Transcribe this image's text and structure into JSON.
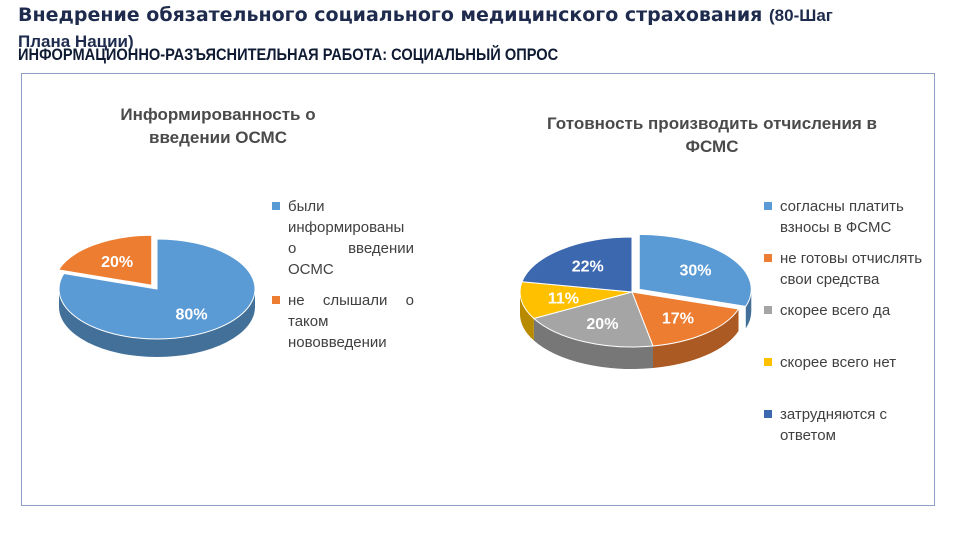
{
  "header": {
    "title": "Внедрение обязательного социального медицинского страхования",
    "title_suffix": "(80-Шаг",
    "title_cont": "Плана Нации)",
    "subtitle": "ИНФОРМАЦИОННО-РАЗЪЯСНИТЕЛЬНАЯ РАБОТА: СОЦИАЛЬНЫЙ ОПРОС"
  },
  "colors": {
    "blue": "#5b9bd5",
    "orange": "#ed7d31",
    "gray": "#a5a5a5",
    "yellow": "#ffc000",
    "navy": "#3c68b0"
  },
  "chart_data": [
    {
      "type": "pie",
      "title": "Информированность о введении ОСМС",
      "categories": [
        "были информированы о введении ОСМС",
        "не слышали о таком нововведении"
      ],
      "values": [
        80,
        20
      ],
      "data_labels": [
        "80%",
        "20%"
      ],
      "colors": [
        "#5b9bd5",
        "#ed7d31"
      ],
      "legend_position": "right"
    },
    {
      "type": "pie",
      "title": "Готовность производить отчисления в ФСМС",
      "categories": [
        "согласны платить взносы в ФСМС",
        "не готовы отчислять свои средства",
        "скорее всего да",
        "скорее всего нет",
        "затрудняются с ответом"
      ],
      "values": [
        30,
        17,
        20,
        11,
        22
      ],
      "data_labels": [
        "30%",
        "17%",
        "20%",
        "11%",
        "22%"
      ],
      "colors": [
        "#5b9bd5",
        "#ed7d31",
        "#a5a5a5",
        "#ffc000",
        "#3c68b0"
      ],
      "legend_position": "right"
    }
  ]
}
